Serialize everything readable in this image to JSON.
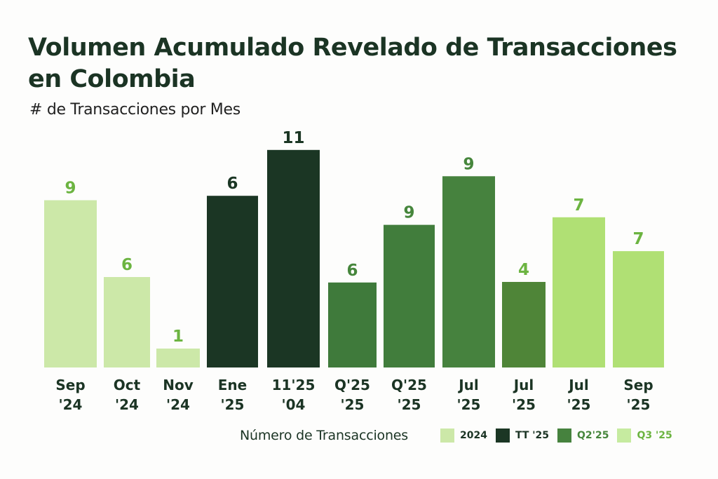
{
  "chart_data": {
    "type": "bar",
    "title": "Volumen Acumulado Revelado de Transacciones en Colombia",
    "subtitle": "# de Transacciones por Mes",
    "xlabel": "",
    "ylabel": "",
    "grid": false,
    "legend_position": "bottom-right",
    "categories": [
      [
        "Sep",
        "'24"
      ],
      [
        "Oct",
        "'24"
      ],
      [
        "Nov",
        "'24"
      ],
      [
        "Ene",
        "'25"
      ],
      [
        "11'25",
        "'04"
      ],
      [
        "Q'25",
        "'25"
      ],
      [
        "Q'25",
        "'25"
      ],
      [
        "Jul",
        "'25"
      ],
      [
        "Jul",
        "'25"
      ],
      [
        "Jul",
        "'25"
      ],
      [
        "Sep",
        "'25"
      ]
    ],
    "values": [
      9,
      6,
      1,
      6,
      11,
      6,
      9,
      9,
      4,
      7,
      7
    ],
    "value_labels": [
      "9",
      "6",
      "1",
      "6",
      "11",
      "6",
      "9",
      "9",
      "4",
      "7",
      "7"
    ],
    "bar_series": [
      "2024",
      "2024",
      "2024",
      "TT '25",
      "TT '25",
      "Q2'25",
      "Q2'25",
      "Q2'25",
      "Q2'25",
      "Q3 '25",
      "Q3 '25"
    ],
    "bar_colors": [
      "#cce8a8",
      "#cce8a8",
      "#cce8a8",
      "#1b3624",
      "#1b3624",
      "#3f7a3b",
      "#417d3c",
      "#46823e",
      "#4f8538",
      "#b0e074",
      "#b0e074"
    ],
    "label_colors": [
      "#6cb441",
      "#6cb441",
      "#6cb441",
      "#1b3624",
      "#1b3624",
      "#46863c",
      "#46863c",
      "#46863c",
      "#6cb441",
      "#6cb441",
      "#6cb441"
    ],
    "legend": {
      "title": "Número de Transacciones",
      "entries": [
        {
          "name": "2024",
          "color": "#cce8a8",
          "text_color": "#1b3424"
        },
        {
          "name": "TT '25",
          "color": "#1b3624",
          "text_color": "#1b3424"
        },
        {
          "name": "Q2'25",
          "color": "#46823e",
          "text_color": "#46863c"
        },
        {
          "name": "Q3 '25",
          "color": "#c6eba0",
          "text_color": "#6cb441"
        }
      ]
    }
  }
}
